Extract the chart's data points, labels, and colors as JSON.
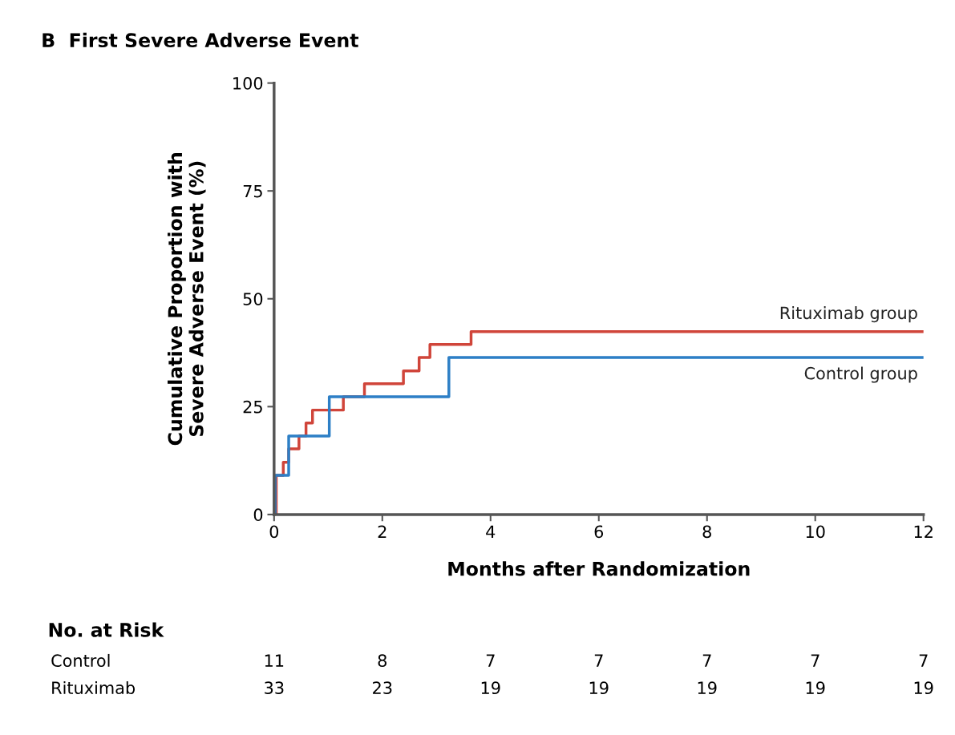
{
  "chart_data": {
    "type": "step",
    "title": "B  First Severe Adverse Event",
    "xlabel": "Months after Randomization",
    "ylabel": "Cumulative Proportion with\nSevere Adverse Event (%)",
    "series": [
      {
        "name": "Rituximab group",
        "color": "#d0453a",
        "x": [
          0,
          0.04,
          0.17,
          0.27,
          0.46,
          0.59,
          0.71,
          1.28,
          1.67,
          2.39,
          2.68,
          2.88,
          3.64,
          12
        ],
        "values": [
          0,
          9.1,
          12.1,
          15.2,
          18.2,
          21.2,
          24.2,
          27.3,
          30.3,
          33.3,
          36.4,
          39.4,
          42.4,
          42.4
        ]
      },
      {
        "name": "Control group",
        "color": "#2d7fc6",
        "x": [
          0,
          0.02,
          0.27,
          1.02,
          3.23,
          12
        ],
        "values": [
          0,
          9.1,
          18.2,
          27.3,
          36.4,
          36.4
        ]
      }
    ],
    "xlim": [
      0,
      12
    ],
    "xticks": [
      0,
      2,
      4,
      6,
      8,
      10,
      12
    ],
    "ylim": [
      0,
      100
    ],
    "yticks": [
      0,
      25,
      50,
      75,
      100
    ],
    "grid": false,
    "legend": false,
    "line_style": "solid",
    "marker": "none",
    "annotations": [
      "No. at Risk",
      "Control",
      "11",
      "8",
      "7",
      "7",
      "7",
      "7",
      "7",
      "Rituximab",
      "33",
      "23",
      "19",
      "19",
      "19",
      "19",
      "19"
    ]
  }
}
